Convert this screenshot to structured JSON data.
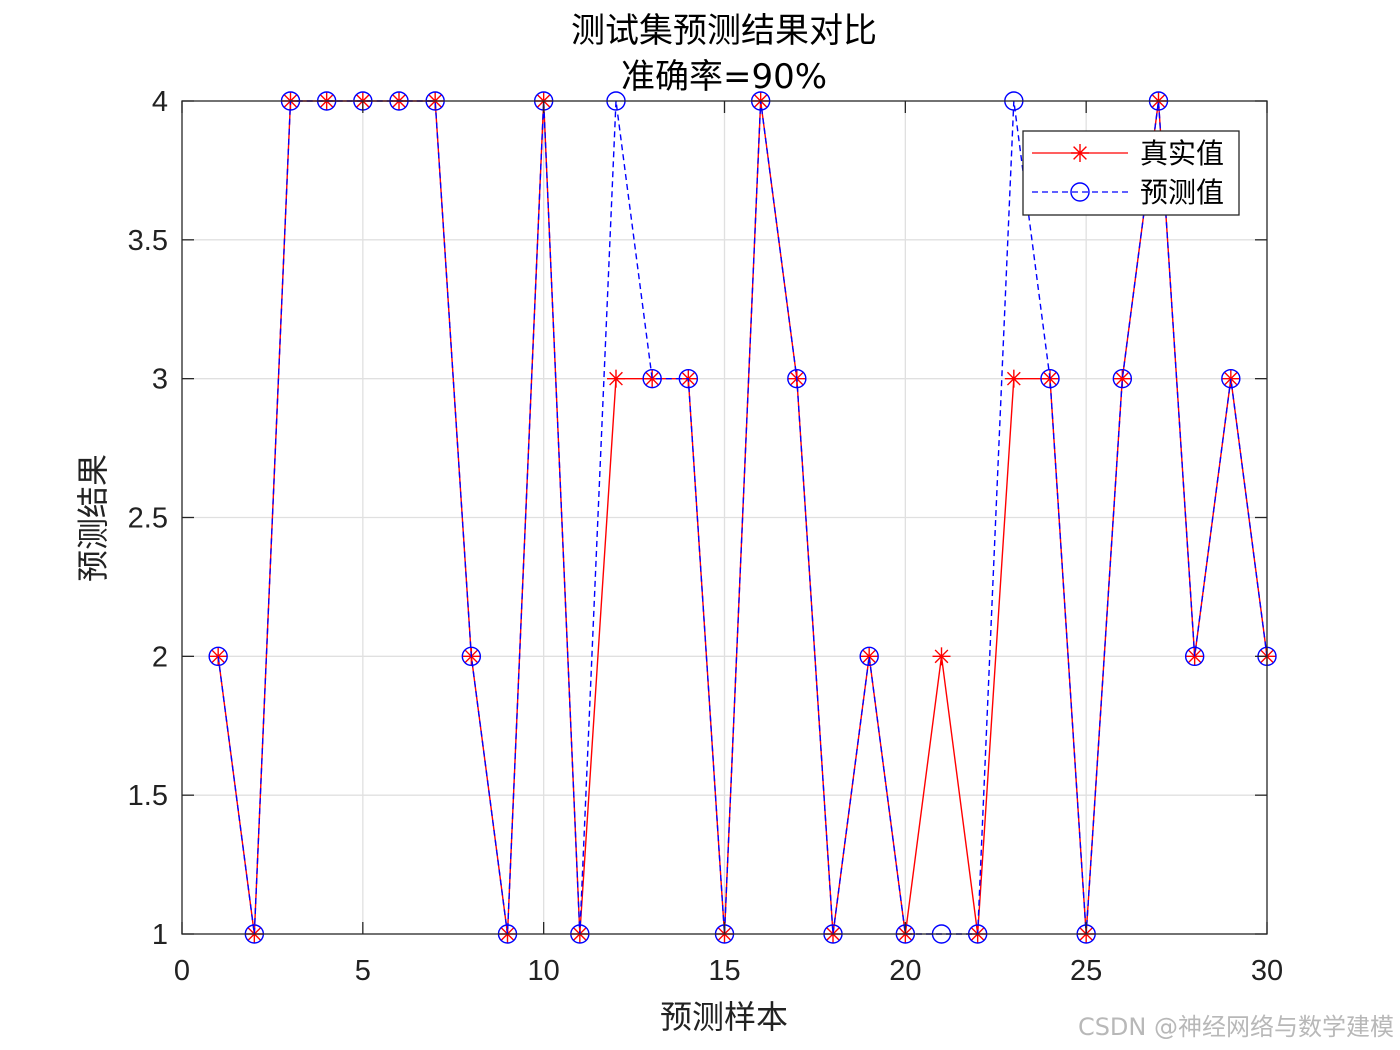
{
  "chart_data": {
    "type": "line",
    "title": "测试集预测结果对比",
    "subtitle": "准确率=90%",
    "xlabel": "预测样本",
    "ylabel": "预测结果",
    "xlim": [
      0,
      30
    ],
    "ylim": [
      1,
      4
    ],
    "xticks": [
      0,
      5,
      10,
      15,
      20,
      25,
      30
    ],
    "yticks": [
      1,
      1.5,
      2,
      2.5,
      3,
      3.5,
      4
    ],
    "xtick_labels": [
      "0",
      "5",
      "10",
      "15",
      "20",
      "25",
      "30"
    ],
    "ytick_labels": [
      "1",
      "1.5",
      "2",
      "2.5",
      "3",
      "3.5",
      "4"
    ],
    "grid": true,
    "legend_location": "top-right",
    "x": [
      1,
      2,
      3,
      4,
      5,
      6,
      7,
      8,
      9,
      10,
      11,
      12,
      13,
      14,
      15,
      16,
      17,
      18,
      19,
      20,
      21,
      22,
      23,
      24,
      25,
      26,
      27,
      28,
      29,
      30
    ],
    "series": [
      {
        "name": "真实值",
        "color": "#ff0000",
        "line_style": "solid",
        "marker": "asterisk",
        "values": [
          2,
          1,
          4,
          4,
          4,
          4,
          4,
          2,
          1,
          4,
          1,
          3,
          3,
          3,
          1,
          4,
          3,
          1,
          2,
          1,
          2,
          1,
          3,
          3,
          1,
          3,
          4,
          2,
          3,
          2
        ]
      },
      {
        "name": "预测值",
        "color": "#0000ff",
        "line_style": "dashed",
        "marker": "circle",
        "values": [
          2,
          1,
          4,
          4,
          4,
          4,
          4,
          2,
          1,
          4,
          1,
          4,
          3,
          3,
          1,
          4,
          3,
          1,
          2,
          1,
          1,
          1,
          4,
          3,
          1,
          3,
          4,
          2,
          3,
          2
        ]
      }
    ]
  },
  "watermark": "CSDN @神经网络与数学建模"
}
